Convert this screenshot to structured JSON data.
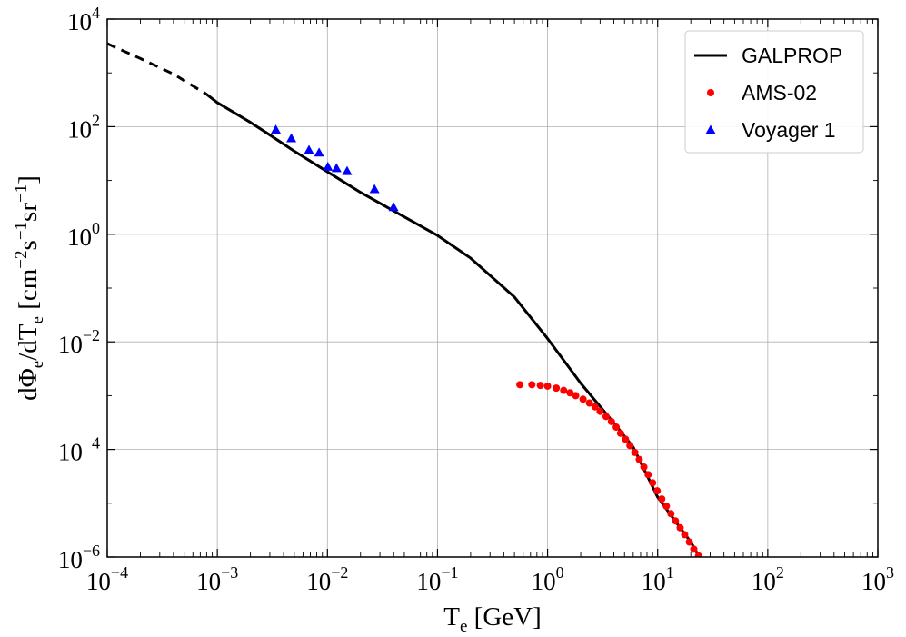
{
  "chart_data": {
    "type": "line",
    "xscale": "log",
    "yscale": "log",
    "xlim": [
      0.0001,
      1000
    ],
    "ylim": [
      1e-06,
      10000
    ],
    "grid": true,
    "legend_position": "top-right",
    "xlabel": {
      "main": "T",
      "sub": "e",
      "rest": " [GeV]"
    },
    "ylabel": {
      "parts": [
        {
          "t": "dΦ",
          "k": "n"
        },
        {
          "t": "e",
          "k": "sub"
        },
        {
          "t": "/dT",
          "k": "n"
        },
        {
          "t": "e",
          "k": "sub"
        },
        {
          "t": " [cm",
          "k": "n"
        },
        {
          "t": "−2",
          "k": "sup"
        },
        {
          "t": "s",
          "k": "n"
        },
        {
          "t": "−1",
          "k": "sup"
        },
        {
          "t": "sr",
          "k": "n"
        },
        {
          "t": "−1",
          "k": "sup"
        },
        {
          "t": "]",
          "k": "n"
        }
      ]
    },
    "x_ticks": [
      {
        "base": "10",
        "exp": "−4",
        "value": 0.0001
      },
      {
        "base": "10",
        "exp": "−3",
        "value": 0.001
      },
      {
        "base": "10",
        "exp": "−2",
        "value": 0.01
      },
      {
        "base": "10",
        "exp": "−1",
        "value": 0.1
      },
      {
        "base": "10",
        "exp": "0",
        "value": 1
      },
      {
        "base": "10",
        "exp": "1",
        "value": 10
      },
      {
        "base": "10",
        "exp": "2",
        "value": 100
      },
      {
        "base": "10",
        "exp": "3",
        "value": 1000
      }
    ],
    "y_ticks": [
      {
        "base": "10",
        "exp": "−6",
        "value": 1e-06
      },
      {
        "base": "10",
        "exp": "−4",
        "value": 0.0001
      },
      {
        "base": "10",
        "exp": "−2",
        "value": 0.01
      },
      {
        "base": "10",
        "exp": "0",
        "value": 1
      },
      {
        "base": "10",
        "exp": "2",
        "value": 100
      },
      {
        "base": "10",
        "exp": "4",
        "value": 10000
      }
    ],
    "series": [
      {
        "name": "GALPROP",
        "kind": "line",
        "color": "#000000",
        "extrapolated": {
          "x": [
            0.0001,
            0.0002,
            0.0004,
            0.0008
          ],
          "y": [
            3500,
            1850,
            950,
            400
          ]
        },
        "x": [
          0.0008,
          0.001,
          0.002,
          0.003,
          0.005,
          0.01,
          0.02,
          0.05,
          0.1,
          0.2,
          0.5,
          1,
          2,
          4,
          6,
          10,
          15,
          20,
          25
        ],
        "y": [
          400,
          280,
          120,
          70,
          35,
          14.5,
          6,
          2.1,
          0.95,
          0.36,
          0.068,
          0.0115,
          0.0017,
          0.00031,
          0.00011,
          1.3e-05,
          4.2e-06,
          1.9e-06,
          8.5e-07
        ]
      },
      {
        "name": "AMS-02",
        "kind": "scatter",
        "marker": "circle",
        "color": "#ff0000",
        "x": [
          0.56,
          0.72,
          0.86,
          1.0,
          1.2,
          1.4,
          1.6,
          1.8,
          2.1,
          2.4,
          2.7,
          3.0,
          3.4,
          3.8,
          4.2,
          4.6,
          5.1,
          5.6,
          6.2,
          6.8,
          7.5,
          8.2,
          9.0,
          9.9,
          10.9,
          12.0,
          13.2,
          14.5,
          16.0,
          17.6,
          19.4,
          21.3,
          23.5,
          25.0
        ],
        "y": [
          0.0016,
          0.0016,
          0.00155,
          0.0015,
          0.00138,
          0.00125,
          0.00113,
          0.001,
          0.00086,
          0.00073,
          0.00062,
          0.00051,
          0.00041,
          0.00033,
          0.00026,
          0.0002,
          0.000155,
          0.000118,
          8.8e-05,
          6.5e-05,
          4.7e-05,
          3.4e-05,
          2.4e-05,
          1.7e-05,
          1.2e-05,
          8.8e-06,
          6.4e-06,
          4.7e-06,
          3.5e-06,
          2.6e-06,
          1.9e-06,
          1.4e-06,
          1.05e-06,
          8.5e-07
        ]
      },
      {
        "name": "Voyager 1",
        "kind": "scatter",
        "marker": "triangle",
        "color": "#0000ff",
        "x": [
          0.0034,
          0.0047,
          0.0068,
          0.0084,
          0.0101,
          0.0121,
          0.0151,
          0.0268,
          0.0399
        ],
        "y": [
          88,
          61,
          37,
          33,
          18,
          17,
          15,
          6.9,
          3.2
        ]
      }
    ]
  }
}
